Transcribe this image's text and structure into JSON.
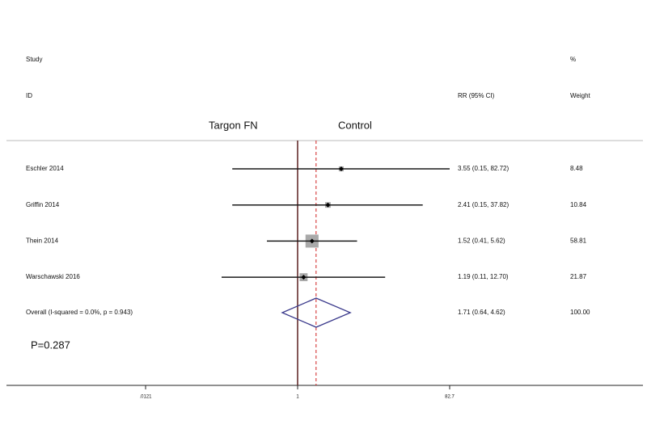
{
  "chart_data": {
    "type": "forest",
    "headers": {
      "study": "Study",
      "id": "ID",
      "percent": "%",
      "ci": "RR (95% CI)",
      "weight": "Weight"
    },
    "favours_left": "Targon FN",
    "favours_right": "Control",
    "studies": [
      {
        "name": "Eschler 2014",
        "rr": 3.55,
        "lower": 0.15,
        "upper": 82.72,
        "ci_label": "3.55 (0.15, 82.72)",
        "weight": 8.48
      },
      {
        "name": "Griffin 2014",
        "rr": 2.41,
        "lower": 0.15,
        "upper": 37.82,
        "ci_label": "2.41 (0.15, 37.82)",
        "weight": 10.84
      },
      {
        "name": "Thein 2014",
        "rr": 1.52,
        "lower": 0.41,
        "upper": 5.62,
        "ci_label": "1.52 (0.41, 5.62)",
        "weight": 58.81
      },
      {
        "name": "Warschawski 2016",
        "rr": 1.19,
        "lower": 0.11,
        "upper": 12.7,
        "ci_label": "1.19 (0.11, 12.70)",
        "weight": 21.87
      }
    ],
    "overall": {
      "name": "Overall  (I-squared = 0.0%, p = 0.943)",
      "rr": 1.71,
      "lower": 0.64,
      "upper": 4.62,
      "ci_label": "1.71 (0.64, 4.62)",
      "weight": 100,
      "weight_label": "100.00"
    },
    "annotation": "P=0.287",
    "x_scale": "log",
    "xlim": [
      0.000213,
      22650
    ],
    "xticks": [
      {
        "value": 0.0121,
        "label": ".0121"
      },
      1,
      82.7
    ],
    "reference_line": 1,
    "colors": {
      "ci": "#1a1a1a",
      "box": "#a9a9a9",
      "diamond": "#3b3a8c",
      "reference": "#5a2020",
      "overall_line": "#d02020"
    }
  }
}
